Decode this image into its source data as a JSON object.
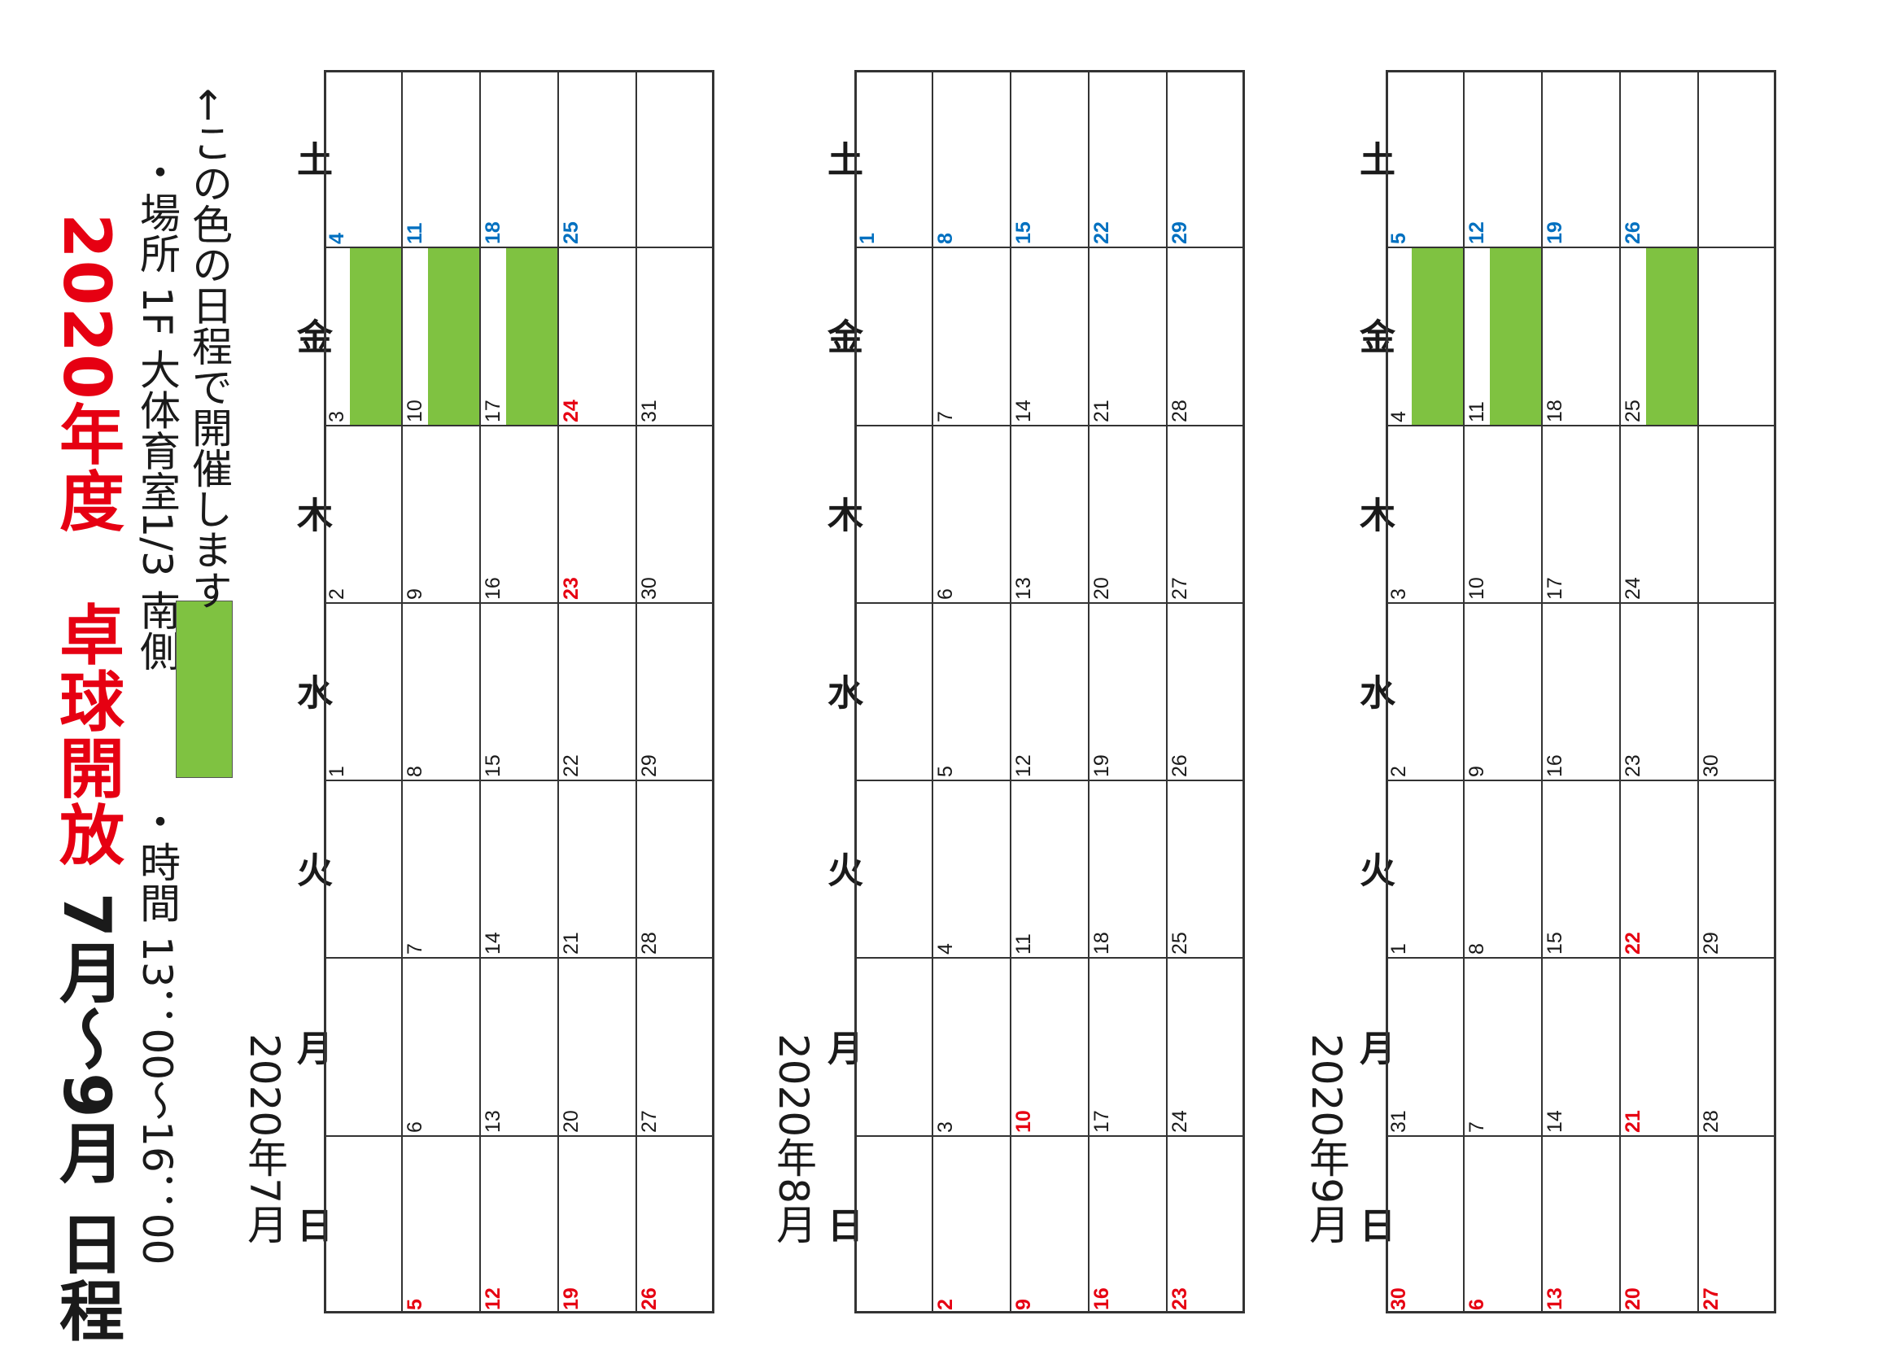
{
  "title": {
    "year_part": "2020年度　",
    "event_part": "卓球開放",
    "period_part": " 7月～9月 日程"
  },
  "info": {
    "time": "・時間 13：00～16：00",
    "place": "・場所 1F 大体育室1/3 南側",
    "legend": "←この色の日程で開催します"
  },
  "colors": {
    "highlight": "#7fc241",
    "sunday_holiday": "#e60012",
    "saturday": "#0070c0"
  },
  "day_headers": [
    "日",
    "月",
    "火",
    "水",
    "木",
    "金",
    "土"
  ],
  "calendars": [
    {
      "label": "2020年7月",
      "weeks": [
        [
          {
            "d": ""
          },
          {
            "d": ""
          },
          {
            "d": ""
          },
          {
            "d": "1"
          },
          {
            "d": "2"
          },
          {
            "d": "3",
            "h": true
          },
          {
            "d": "4"
          }
        ],
        [
          {
            "d": "5"
          },
          {
            "d": "6"
          },
          {
            "d": "7"
          },
          {
            "d": "8"
          },
          {
            "d": "9"
          },
          {
            "d": "10",
            "h": true
          },
          {
            "d": "11"
          }
        ],
        [
          {
            "d": "12"
          },
          {
            "d": "13"
          },
          {
            "d": "14"
          },
          {
            "d": "15"
          },
          {
            "d": "16"
          },
          {
            "d": "17",
            "h": true
          },
          {
            "d": "18"
          }
        ],
        [
          {
            "d": "19"
          },
          {
            "d": "20"
          },
          {
            "d": "21"
          },
          {
            "d": "22"
          },
          {
            "d": "23",
            "red": true
          },
          {
            "d": "24",
            "red": true
          },
          {
            "d": "25"
          }
        ],
        [
          {
            "d": "26"
          },
          {
            "d": "27"
          },
          {
            "d": "28"
          },
          {
            "d": "29"
          },
          {
            "d": "30"
          },
          {
            "d": "31"
          },
          {
            "d": ""
          }
        ]
      ]
    },
    {
      "label": "2020年8月",
      "weeks": [
        [
          {
            "d": ""
          },
          {
            "d": ""
          },
          {
            "d": ""
          },
          {
            "d": ""
          },
          {
            "d": ""
          },
          {
            "d": ""
          },
          {
            "d": "1"
          }
        ],
        [
          {
            "d": "2"
          },
          {
            "d": "3"
          },
          {
            "d": "4"
          },
          {
            "d": "5"
          },
          {
            "d": "6"
          },
          {
            "d": "7"
          },
          {
            "d": "8"
          }
        ],
        [
          {
            "d": "9"
          },
          {
            "d": "10",
            "red": true
          },
          {
            "d": "11"
          },
          {
            "d": "12"
          },
          {
            "d": "13"
          },
          {
            "d": "14"
          },
          {
            "d": "15"
          }
        ],
        [
          {
            "d": "16"
          },
          {
            "d": "17"
          },
          {
            "d": "18"
          },
          {
            "d": "19"
          },
          {
            "d": "20"
          },
          {
            "d": "21"
          },
          {
            "d": "22"
          }
        ],
        [
          {
            "d": "23"
          },
          {
            "d": "24"
          },
          {
            "d": "25"
          },
          {
            "d": "26"
          },
          {
            "d": "27"
          },
          {
            "d": "28"
          },
          {
            "d": "29"
          }
        ]
      ]
    },
    {
      "label": "2020年9月",
      "weeks": [
        [
          {
            "d": "30"
          },
          {
            "d": "31"
          },
          {
            "d": "1"
          },
          {
            "d": "2"
          },
          {
            "d": "3"
          },
          {
            "d": "4",
            "h": true
          },
          {
            "d": "5"
          }
        ],
        [
          {
            "d": "6"
          },
          {
            "d": "7"
          },
          {
            "d": "8"
          },
          {
            "d": "9"
          },
          {
            "d": "10"
          },
          {
            "d": "11",
            "h": true
          },
          {
            "d": "12"
          }
        ],
        [
          {
            "d": "13"
          },
          {
            "d": "14"
          },
          {
            "d": "15"
          },
          {
            "d": "16"
          },
          {
            "d": "17"
          },
          {
            "d": "18"
          },
          {
            "d": "19"
          }
        ],
        [
          {
            "d": "20"
          },
          {
            "d": "21",
            "red": true
          },
          {
            "d": "22",
            "red": true
          },
          {
            "d": "23"
          },
          {
            "d": "24"
          },
          {
            "d": "25",
            "h": true
          },
          {
            "d": "26"
          }
        ],
        [
          {
            "d": "27"
          },
          {
            "d": "28"
          },
          {
            "d": "29"
          },
          {
            "d": "30"
          },
          {
            "d": ""
          },
          {
            "d": ""
          },
          {
            "d": ""
          }
        ]
      ]
    }
  ]
}
